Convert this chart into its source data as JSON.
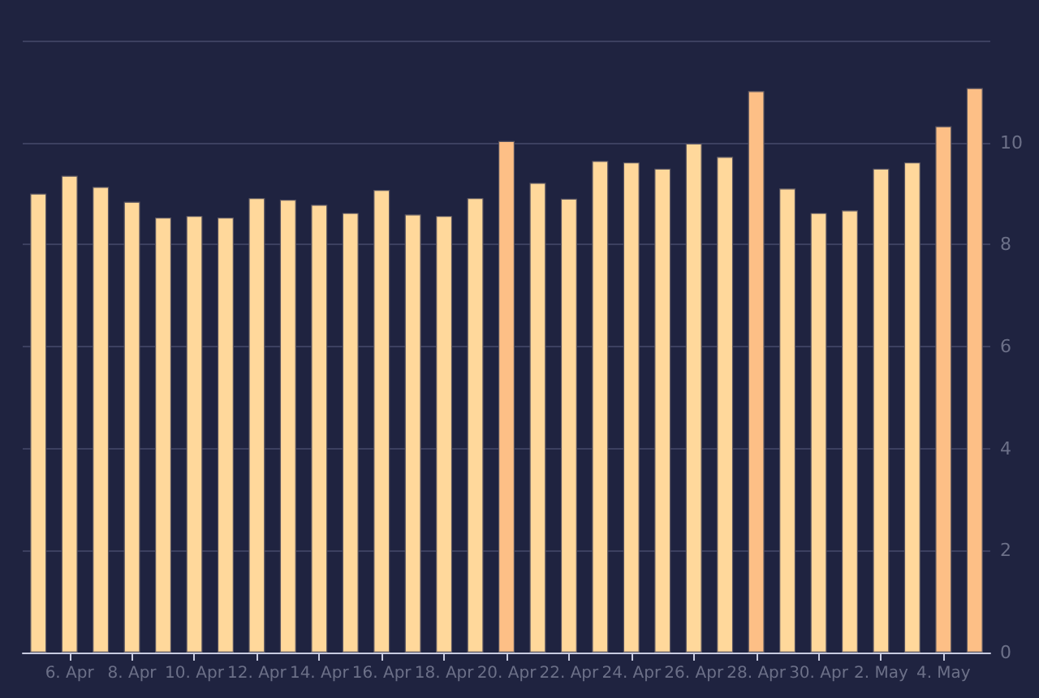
{
  "chart_data": {
    "type": "bar",
    "categories": [
      null,
      "6. Apr",
      null,
      "8. Apr",
      null,
      "10. Apr",
      null,
      "12. Apr",
      null,
      "14. Apr",
      null,
      "16. Apr",
      null,
      "18. Apr",
      null,
      "20. Apr",
      null,
      "22. Apr",
      null,
      "24. Apr",
      null,
      "26. Apr",
      null,
      "28. Apr",
      null,
      "30. Apr",
      null,
      "2. May",
      null,
      "4. May",
      null
    ],
    "values": [
      9.0,
      9.35,
      9.13,
      8.84,
      8.53,
      8.56,
      8.53,
      8.91,
      8.88,
      8.78,
      8.62,
      9.07,
      8.59,
      8.56,
      8.91,
      10.03,
      9.21,
      8.9,
      9.64,
      9.61,
      9.49,
      9.98,
      9.72,
      11.01,
      9.1,
      8.62,
      8.67,
      9.49,
      9.61,
      10.32,
      11.07
    ],
    "colors": [
      "#ffd89b",
      "#ffd89b",
      "#ffd89b",
      "#ffd89b",
      "#ffd89b",
      "#ffd89b",
      "#ffd89b",
      "#ffd89b",
      "#ffd89b",
      "#ffd89b",
      "#ffd89b",
      "#ffd89b",
      "#ffd89b",
      "#ffd89b",
      "#ffd89b",
      "#fdbf86",
      "#ffd89b",
      "#ffd89b",
      "#ffd89b",
      "#ffd89b",
      "#ffd89b",
      "#ffd89b",
      "#ffd89b",
      "#fdbf86",
      "#ffd89b",
      "#ffd89b",
      "#ffd89b",
      "#ffd89b",
      "#ffd89b",
      "#fdbf86",
      "#fdbf86"
    ],
    "ylim": [
      0,
      12
    ],
    "yticks": [
      0,
      2,
      4,
      6,
      8,
      10,
      {
        "value": 12,
        "label": null
      }
    ],
    "grid": "y"
  }
}
